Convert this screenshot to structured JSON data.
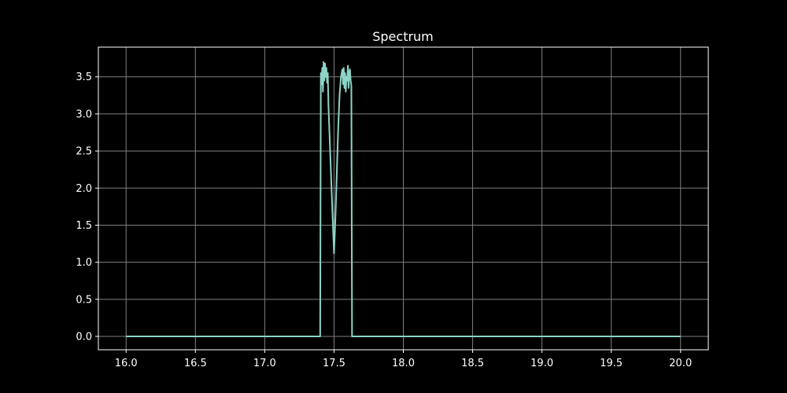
{
  "chart_data": {
    "type": "line",
    "title": "Spectrum",
    "xlabel": "",
    "ylabel": "",
    "xlim": [
      15.8,
      20.2
    ],
    "ylim": [
      -0.18,
      3.9
    ],
    "xticks": [
      16.0,
      16.5,
      17.0,
      17.5,
      18.0,
      18.5,
      19.0,
      19.5,
      20.0
    ],
    "xtick_labels": [
      "16.0",
      "16.5",
      "17.0",
      "17.5",
      "18.0",
      "18.5",
      "19.0",
      "19.5",
      "20.0"
    ],
    "yticks": [
      0.0,
      0.5,
      1.0,
      1.5,
      2.0,
      2.5,
      3.0,
      3.5
    ],
    "ytick_labels": [
      "0.0",
      "0.5",
      "1.0",
      "1.5",
      "2.0",
      "2.5",
      "3.0",
      "3.5"
    ],
    "grid": true,
    "series": [
      {
        "x": [
          16.0,
          17.0,
          17.4,
          17.405,
          17.41,
          17.415,
          17.42,
          17.425,
          17.43,
          17.435,
          17.44,
          17.445,
          17.45,
          17.455,
          17.46,
          17.47,
          17.48,
          17.49,
          17.5,
          17.51,
          17.52,
          17.53,
          17.54,
          17.55,
          17.56,
          17.565,
          17.57,
          17.575,
          17.58,
          17.585,
          17.59,
          17.595,
          17.6,
          17.605,
          17.61,
          17.615,
          17.62,
          17.625,
          17.63,
          18.0,
          19.0,
          20.0
        ],
        "y": [
          0.0,
          0.0,
          0.0,
          3.55,
          3.4,
          3.62,
          3.3,
          3.7,
          3.45,
          3.68,
          3.5,
          3.62,
          3.42,
          3.55,
          3.1,
          2.6,
          2.1,
          1.6,
          1.12,
          1.6,
          2.2,
          2.8,
          3.25,
          3.5,
          3.6,
          3.4,
          3.62,
          3.35,
          3.55,
          3.3,
          3.5,
          3.45,
          3.65,
          3.35,
          3.55,
          3.6,
          3.45,
          3.38,
          0.0,
          0.0,
          0.0,
          0.0
        ]
      }
    ]
  },
  "colors": {
    "background": "#000000",
    "line": "#8dd3c7",
    "grid": "#808080",
    "axes": "#ffffff",
    "text": "#ffffff"
  }
}
